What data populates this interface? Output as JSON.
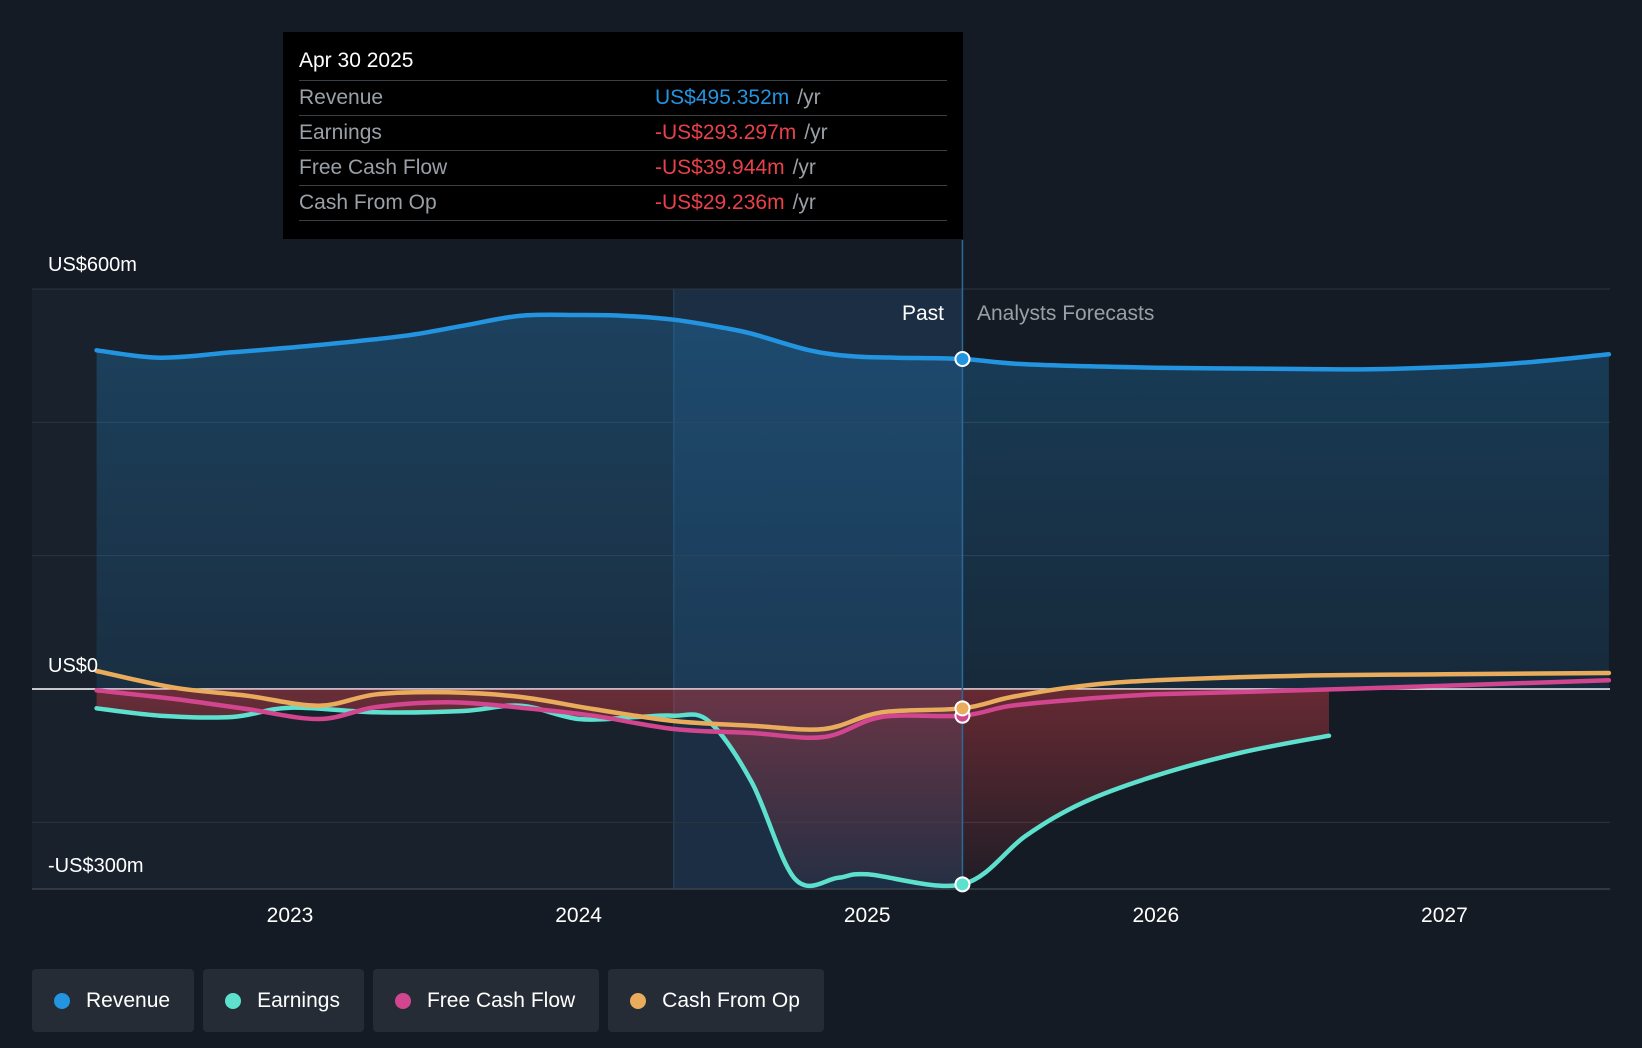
{
  "tooltip": {
    "date": "Apr 30 2025",
    "rows": [
      {
        "name": "Revenue",
        "value": "US$495.352m",
        "unit": "/yr",
        "color": "#2394df"
      },
      {
        "name": "Earnings",
        "value": "-US$293.297m",
        "unit": "/yr",
        "color": "#e8414a"
      },
      {
        "name": "Free Cash Flow",
        "value": "-US$39.944m",
        "unit": "/yr",
        "color": "#e8414a"
      },
      {
        "name": "Cash From Op",
        "value": "-US$29.236m",
        "unit": "/yr",
        "color": "#e8414a"
      }
    ]
  },
  "labels": {
    "past": "Past",
    "forecast": "Analysts Forecasts",
    "y_top": "US$600m",
    "y_zero": "US$0",
    "y_bottom": "-US$300m"
  },
  "legend": [
    {
      "label": "Revenue",
      "color": "#2394df"
    },
    {
      "label": "Earnings",
      "color": "#5ee0cf"
    },
    {
      "label": "Free Cash Flow",
      "color": "#d2468f"
    },
    {
      "label": "Cash From Op",
      "color": "#e8ac5c"
    }
  ],
  "chart_data": {
    "type": "line",
    "ylim": [
      -300,
      600
    ],
    "x_ticks": [
      "2023",
      "2024",
      "2025",
      "2026",
      "2027"
    ],
    "tick_years": [
      2023,
      2024,
      2025,
      2026,
      2027
    ],
    "xlim": [
      2022.1,
      2027.57
    ],
    "past_end": 2025.33,
    "highlight_start": 2024.33,
    "gridlines": [
      600,
      400,
      200,
      0,
      -200
    ],
    "grid": true,
    "legend_position": "bottom",
    "series": [
      {
        "name": "Revenue",
        "color": "#2394df",
        "marker_x": 2025.33,
        "marker_y": 495,
        "points": [
          [
            2022.33,
            508
          ],
          [
            2022.55,
            497
          ],
          [
            2022.8,
            505
          ],
          [
            2023.1,
            516
          ],
          [
            2023.4,
            530
          ],
          [
            2023.6,
            545
          ],
          [
            2023.8,
            560
          ],
          [
            2024.0,
            561
          ],
          [
            2024.15,
            560
          ],
          [
            2024.33,
            554
          ],
          [
            2024.5,
            542
          ],
          [
            2024.6,
            533
          ],
          [
            2024.8,
            508
          ],
          [
            2024.95,
            499
          ],
          [
            2025.1,
            497
          ],
          [
            2025.33,
            495
          ],
          [
            2025.55,
            487
          ],
          [
            2026.0,
            482
          ],
          [
            2026.5,
            480
          ],
          [
            2026.8,
            480
          ],
          [
            2027.2,
            487
          ],
          [
            2027.57,
            502
          ]
        ]
      },
      {
        "name": "Earnings",
        "color": "#5ee0cf",
        "marker_x": 2025.33,
        "marker_y": -293,
        "points": [
          [
            2022.33,
            -29
          ],
          [
            2022.55,
            -40
          ],
          [
            2022.8,
            -42
          ],
          [
            2023.0,
            -28
          ],
          [
            2023.3,
            -35
          ],
          [
            2023.6,
            -33
          ],
          [
            2023.8,
            -25
          ],
          [
            2024.0,
            -45
          ],
          [
            2024.2,
            -42
          ],
          [
            2024.33,
            -40
          ],
          [
            2024.45,
            -48
          ],
          [
            2024.6,
            -140
          ],
          [
            2024.75,
            -285
          ],
          [
            2024.9,
            -283
          ],
          [
            2025.0,
            -278
          ],
          [
            2025.33,
            -293
          ],
          [
            2025.55,
            -220
          ],
          [
            2025.75,
            -170
          ],
          [
            2026.0,
            -130
          ],
          [
            2026.3,
            -95
          ],
          [
            2026.6,
            -70
          ]
        ]
      },
      {
        "name": "Free Cash Flow",
        "color": "#d2468f",
        "marker_x": 2025.33,
        "marker_y": -40,
        "points": [
          [
            2022.33,
            -2
          ],
          [
            2022.6,
            -15
          ],
          [
            2022.85,
            -30
          ],
          [
            2023.1,
            -45
          ],
          [
            2023.3,
            -27
          ],
          [
            2023.55,
            -20
          ],
          [
            2023.8,
            -28
          ],
          [
            2024.05,
            -40
          ],
          [
            2024.33,
            -60
          ],
          [
            2024.6,
            -66
          ],
          [
            2024.85,
            -72
          ],
          [
            2025.05,
            -42
          ],
          [
            2025.33,
            -40
          ],
          [
            2025.5,
            -25
          ],
          [
            2025.75,
            -15
          ],
          [
            2026.0,
            -8
          ],
          [
            2026.5,
            -2
          ],
          [
            2027.0,
            5
          ],
          [
            2027.57,
            13
          ]
        ]
      },
      {
        "name": "Cash From Op",
        "color": "#e8ac5c",
        "marker_x": 2025.33,
        "marker_y": -29,
        "points": [
          [
            2022.33,
            27
          ],
          [
            2022.6,
            2
          ],
          [
            2022.85,
            -10
          ],
          [
            2023.1,
            -25
          ],
          [
            2023.3,
            -8
          ],
          [
            2023.55,
            -5
          ],
          [
            2023.8,
            -12
          ],
          [
            2024.05,
            -30
          ],
          [
            2024.33,
            -48
          ],
          [
            2024.6,
            -55
          ],
          [
            2024.85,
            -60
          ],
          [
            2025.05,
            -35
          ],
          [
            2025.33,
            -29
          ],
          [
            2025.5,
            -12
          ],
          [
            2025.75,
            5
          ],
          [
            2026.0,
            13
          ],
          [
            2026.5,
            20
          ],
          [
            2027.0,
            22
          ],
          [
            2027.57,
            24
          ]
        ]
      }
    ]
  }
}
